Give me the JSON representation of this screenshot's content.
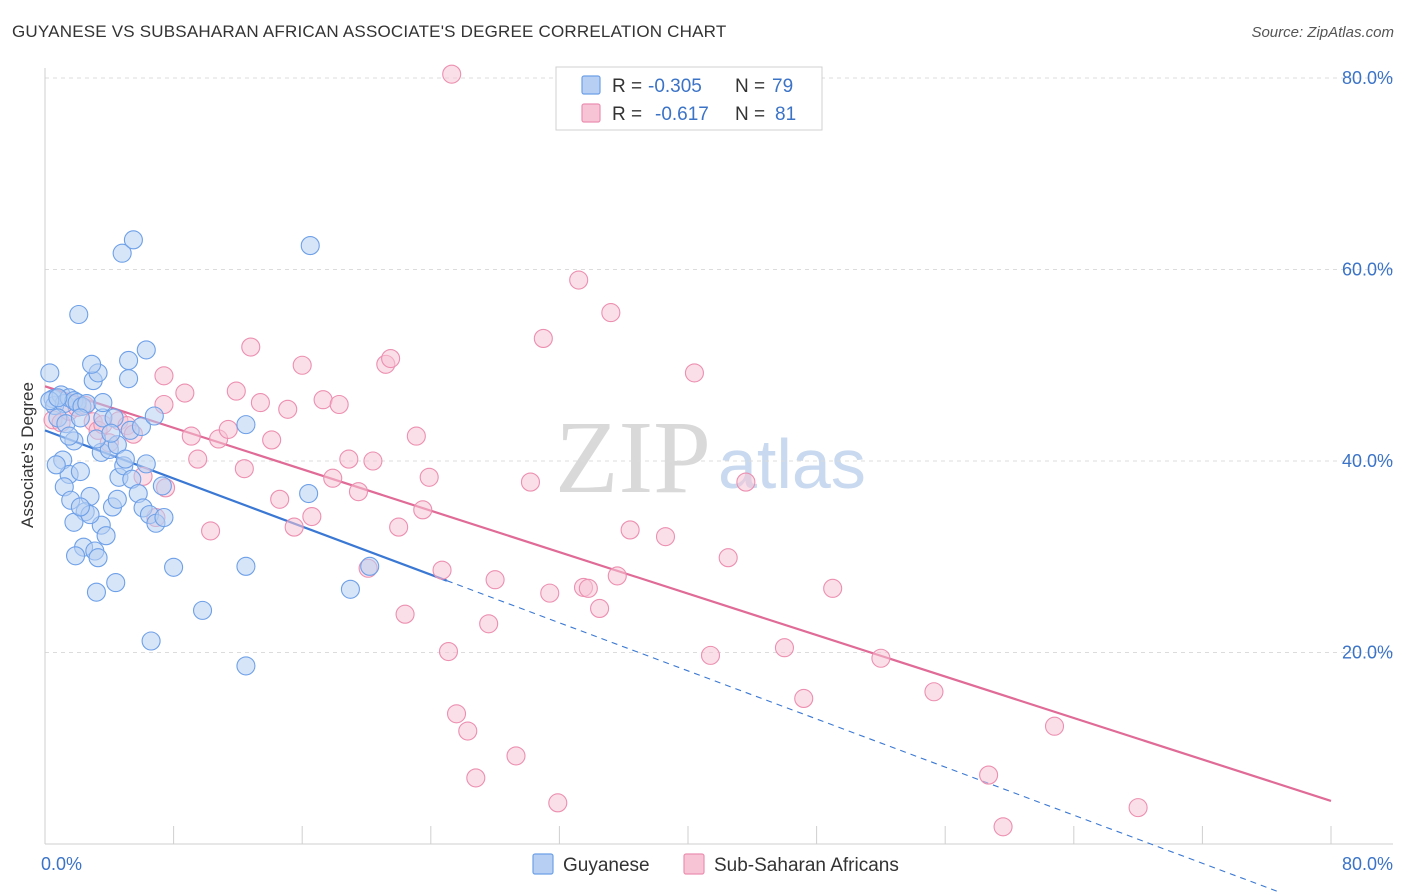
{
  "title": "GUYANESE VS SUBSAHARAN AFRICAN ASSOCIATE'S DEGREE CORRELATION CHART",
  "source": "Source: ZipAtlas.com",
  "watermark": {
    "zip": "ZIP",
    "atlas": "atlas"
  },
  "chart_data": {
    "type": "scatter",
    "title": "GUYANESE VS SUBSAHARAN AFRICAN ASSOCIATE'S DEGREE CORRELATION CHART",
    "xlabel": "",
    "ylabel": "Associate's Degree",
    "xlim": [
      0,
      80
    ],
    "ylim": [
      0,
      80
    ],
    "x_tick_labels": [
      "0.0%",
      "80.0%"
    ],
    "y_ticks": [
      20,
      40,
      60,
      80
    ],
    "y_tick_labels": [
      "20.0%",
      "40.0%",
      "60.0%",
      "80.0%"
    ],
    "grid": "horizontal dashed",
    "legend_placement": "top-center",
    "stats": [
      {
        "r_label": "R =",
        "r_value": "-0.305",
        "n_label": "N =",
        "n_value": "79"
      },
      {
        "r_label": "R =",
        "r_value": "-0.617",
        "n_label": "N =",
        "n_value": "81"
      }
    ],
    "series": [
      {
        "name": "Guyanese",
        "color": "#6ea0e8",
        "fill": "#b7cff3",
        "line_color": "#3a78d4",
        "trend": {
          "x0": 0,
          "y0": 43.2,
          "x1": 25,
          "y1": 27.5,
          "dashed_to_x": 80
        },
        "points": [
          [
            0.3,
            49.2
          ],
          [
            0.5,
            46.5
          ],
          [
            0.6,
            45.8
          ],
          [
            1.0,
            46.9
          ],
          [
            1.2,
            46.0
          ],
          [
            1.5,
            46.6
          ],
          [
            1.8,
            46.3
          ],
          [
            2.0,
            46.1
          ],
          [
            2.3,
            45.7
          ],
          [
            2.6,
            46.0
          ],
          [
            0.8,
            44.5
          ],
          [
            1.3,
            43.9
          ],
          [
            1.8,
            42.1
          ],
          [
            1.1,
            40.1
          ],
          [
            1.5,
            38.6
          ],
          [
            1.2,
            37.3
          ],
          [
            2.2,
            38.9
          ],
          [
            2.8,
            36.3
          ],
          [
            1.6,
            35.9
          ],
          [
            2.5,
            34.7
          ],
          [
            1.8,
            33.6
          ],
          [
            2.4,
            31.0
          ],
          [
            1.9,
            30.1
          ],
          [
            3.1,
            30.6
          ],
          [
            3.5,
            33.3
          ],
          [
            3.8,
            32.2
          ],
          [
            3.3,
            29.9
          ],
          [
            4.4,
            27.3
          ],
          [
            3.2,
            26.3
          ],
          [
            4.2,
            35.2
          ],
          [
            4.5,
            36.0
          ],
          [
            4.6,
            38.3
          ],
          [
            4.9,
            39.5
          ],
          [
            5.4,
            38.1
          ],
          [
            5.8,
            36.6
          ],
          [
            6.1,
            35.1
          ],
          [
            6.5,
            34.4
          ],
          [
            6.9,
            33.5
          ],
          [
            7.3,
            37.4
          ],
          [
            6.3,
            39.7
          ],
          [
            7.4,
            34.1
          ],
          [
            2.8,
            34.4
          ],
          [
            2.2,
            35.2
          ],
          [
            3.5,
            40.9
          ],
          [
            4.0,
            41.2
          ],
          [
            4.5,
            41.7
          ],
          [
            5.0,
            40.2
          ],
          [
            3.2,
            42.3
          ],
          [
            3.6,
            44.5
          ],
          [
            4.3,
            44.5
          ],
          [
            5.3,
            43.2
          ],
          [
            6.0,
            43.6
          ],
          [
            3.0,
            48.4
          ],
          [
            3.3,
            49.2
          ],
          [
            5.2,
            50.5
          ],
          [
            2.9,
            50.1
          ],
          [
            6.3,
            51.6
          ],
          [
            2.1,
            55.3
          ],
          [
            4.8,
            61.7
          ],
          [
            5.5,
            63.1
          ],
          [
            16.5,
            62.5
          ],
          [
            12.5,
            43.8
          ],
          [
            8.0,
            28.9
          ],
          [
            9.8,
            24.4
          ],
          [
            6.6,
            21.2
          ],
          [
            12.5,
            18.6
          ],
          [
            12.5,
            29.0
          ],
          [
            16.4,
            36.6
          ],
          [
            19.0,
            26.6
          ],
          [
            20.2,
            29.0
          ],
          [
            6.8,
            44.7
          ],
          [
            3.6,
            46.1
          ],
          [
            0.3,
            46.3
          ],
          [
            0.8,
            46.6
          ],
          [
            2.2,
            44.5
          ],
          [
            4.1,
            42.9
          ],
          [
            5.2,
            48.6
          ],
          [
            1.5,
            42.6
          ],
          [
            0.7,
            39.6
          ]
        ]
      },
      {
        "name": "Sub-Saharan Africans",
        "color": "#ec8fb0",
        "fill": "#f7c4d6",
        "line_color": "#e06b96",
        "trend": {
          "x0": 0,
          "y0": 47.8,
          "x1": 80,
          "y1": 4.5
        },
        "points": [
          [
            0.5,
            44.3
          ],
          [
            1.0,
            44.0
          ],
          [
            1.5,
            45.2
          ],
          [
            2.0,
            45.6
          ],
          [
            2.5,
            45.8
          ],
          [
            3.0,
            44.1
          ],
          [
            3.3,
            43.2
          ],
          [
            3.6,
            43.8
          ],
          [
            4.0,
            41.9
          ],
          [
            4.6,
            44.2
          ],
          [
            5.1,
            43.7
          ],
          [
            5.5,
            42.8
          ],
          [
            6.1,
            38.4
          ],
          [
            6.9,
            34.1
          ],
          [
            7.5,
            37.2
          ],
          [
            7.4,
            45.9
          ],
          [
            7.4,
            48.9
          ],
          [
            8.7,
            47.1
          ],
          [
            9.1,
            42.6
          ],
          [
            9.5,
            40.2
          ],
          [
            10.3,
            32.7
          ],
          [
            10.8,
            42.3
          ],
          [
            11.4,
            43.3
          ],
          [
            11.9,
            47.3
          ],
          [
            12.4,
            39.2
          ],
          [
            12.8,
            51.9
          ],
          [
            13.4,
            46.1
          ],
          [
            14.1,
            42.2
          ],
          [
            14.6,
            36.0
          ],
          [
            15.1,
            45.4
          ],
          [
            15.5,
            33.1
          ],
          [
            16.0,
            50.0
          ],
          [
            16.6,
            34.2
          ],
          [
            17.3,
            46.4
          ],
          [
            17.9,
            38.2
          ],
          [
            18.3,
            45.9
          ],
          [
            18.9,
            40.2
          ],
          [
            19.5,
            36.8
          ],
          [
            20.1,
            28.8
          ],
          [
            20.4,
            40.0
          ],
          [
            21.2,
            50.1
          ],
          [
            21.5,
            50.7
          ],
          [
            22.0,
            33.1
          ],
          [
            22.4,
            24.0
          ],
          [
            23.1,
            42.6
          ],
          [
            23.5,
            34.9
          ],
          [
            23.9,
            38.3
          ],
          [
            24.7,
            28.6
          ],
          [
            25.1,
            20.1
          ],
          [
            25.6,
            13.6
          ],
          [
            26.3,
            11.8
          ],
          [
            26.8,
            6.9
          ],
          [
            27.6,
            23.0
          ],
          [
            28.0,
            27.6
          ],
          [
            29.3,
            9.2
          ],
          [
            30.2,
            37.8
          ],
          [
            31.0,
            52.8
          ],
          [
            31.4,
            26.2
          ],
          [
            31.9,
            4.3
          ],
          [
            33.2,
            58.9
          ],
          [
            33.5,
            26.8
          ],
          [
            33.8,
            26.7
          ],
          [
            34.5,
            24.6
          ],
          [
            35.2,
            55.5
          ],
          [
            35.6,
            28.0
          ],
          [
            36.4,
            32.8
          ],
          [
            38.6,
            32.1
          ],
          [
            40.4,
            49.2
          ],
          [
            41.4,
            19.7
          ],
          [
            42.5,
            29.9
          ],
          [
            43.6,
            37.8
          ],
          [
            46.0,
            20.5
          ],
          [
            47.2,
            15.2
          ],
          [
            49.0,
            26.7
          ],
          [
            52.0,
            19.4
          ],
          [
            55.3,
            15.9
          ],
          [
            58.7,
            7.2
          ],
          [
            59.6,
            1.8
          ],
          [
            62.8,
            12.3
          ],
          [
            68.0,
            3.8
          ],
          [
            25.3,
            80.4
          ]
        ]
      }
    ]
  }
}
